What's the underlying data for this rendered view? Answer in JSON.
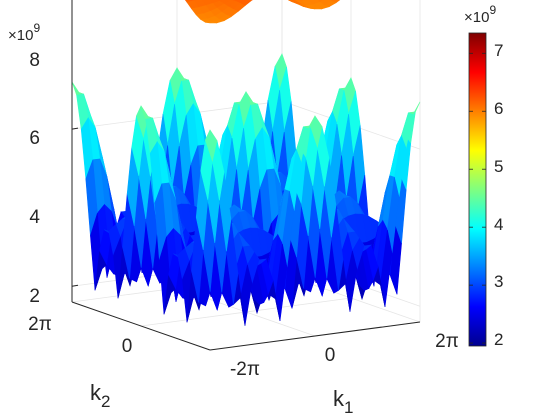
{
  "chart_data": {
    "type": "surface3d",
    "title": "",
    "xlabel": "k",
    "xlabel_sub": "1",
    "ylabel": "k",
    "ylabel_sub": "2",
    "zlabel": "",
    "z_exponent_label": "×10",
    "z_exponent": "9",
    "x_ticks": [
      "-2π",
      "0",
      "2π"
    ],
    "y_ticks": [
      "2π",
      "0"
    ],
    "z_ticks": [
      "2",
      "4",
      "6",
      "8"
    ],
    "x_range": [
      -6.2832,
      6.2832
    ],
    "y_range": [
      -6.2832,
      6.2832
    ],
    "z_range": [
      1.8,
      8
    ],
    "grid": true,
    "series": [
      {
        "base": 2.05,
        "amp": 2.55
      },
      {
        "base": 6.1,
        "amp": 0.28
      },
      {
        "base": 6.8,
        "amp": 0.42
      }
    ],
    "colorbar": {
      "colormap": "jet",
      "range": [
        1.95,
        7.35
      ],
      "ticks": [
        "2",
        "3",
        "4",
        "5",
        "6",
        "7"
      ],
      "exponent_label": "×10",
      "exponent": "9"
    }
  }
}
